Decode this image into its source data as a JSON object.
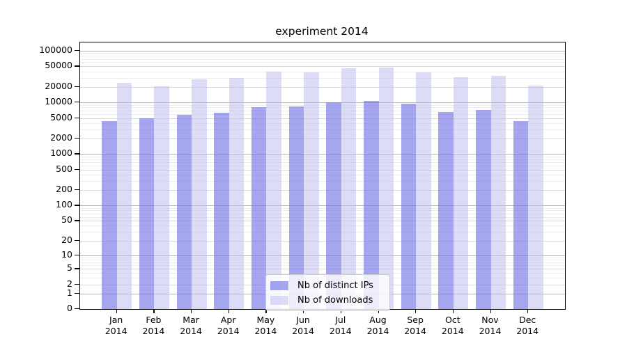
{
  "chart_data": {
    "type": "bar",
    "title": "experiment 2014",
    "x_year": "2014",
    "categories": [
      "Jan",
      "Feb",
      "Mar",
      "Apr",
      "May",
      "Jun",
      "Jul",
      "Aug",
      "Sep",
      "Oct",
      "Nov",
      "Dec"
    ],
    "series": [
      {
        "name": "Nb of distinct IPs",
        "color": "rgba(110,110,230,0.62)",
        "values": [
          4400,
          5000,
          5700,
          6400,
          8000,
          8300,
          10200,
          10800,
          9400,
          6600,
          7100,
          4400
        ]
      },
      {
        "name": "Nb of downloads",
        "color": "rgba(185,185,240,0.5)",
        "values": [
          24000,
          20800,
          27800,
          30000,
          39000,
          38000,
          45800,
          47500,
          38000,
          30800,
          32500,
          21300
        ]
      }
    ],
    "y_ticks": [
      0,
      1,
      2,
      5,
      10,
      20,
      50,
      100,
      200,
      500,
      1000,
      2000,
      5000,
      10000,
      20000,
      50000,
      100000
    ],
    "ylim": [
      0,
      145000
    ],
    "yscale": "log1p",
    "grid": "horizontal",
    "legend_position": "lower center",
    "xlabel": "",
    "ylabel": ""
  }
}
